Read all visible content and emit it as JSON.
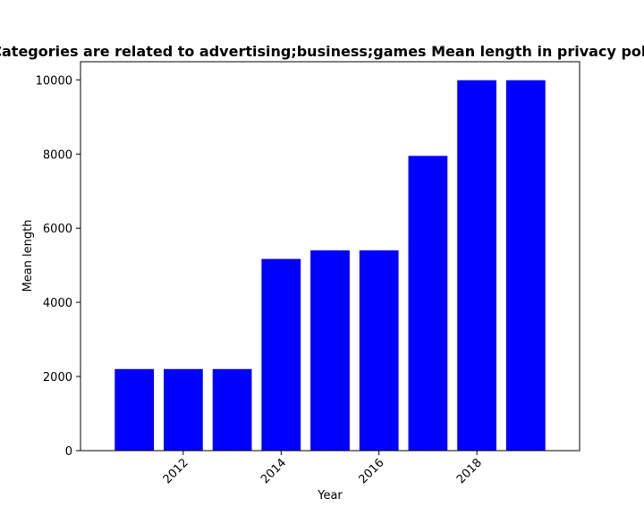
{
  "chart_data": {
    "type": "bar",
    "title": "Categories are related to advertising;business;games Mean length in privacy policy",
    "xlabel": "Year",
    "ylabel": "Mean length",
    "x": [
      2011,
      2012,
      2013,
      2014,
      2015,
      2016,
      2017,
      2018,
      2019
    ],
    "values": [
      2200,
      2200,
      2200,
      5170,
      5400,
      5400,
      7950,
      9990,
      9990
    ],
    "xlim": [
      2009.9,
      2020.1
    ],
    "ylim": [
      0,
      10490
    ],
    "xticks": [
      2012,
      2014,
      2016,
      2018
    ],
    "yticks": [
      0,
      2000,
      4000,
      6000,
      8000,
      10000
    ],
    "bar_color": "#0000ff",
    "grid": false
  }
}
